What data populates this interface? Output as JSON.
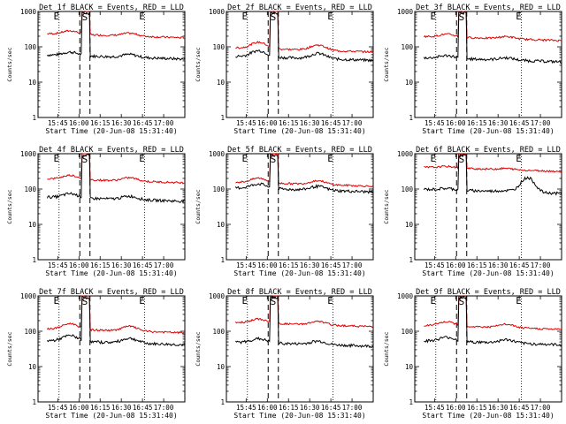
{
  "panels": [
    {
      "title": "Det 1f BLACK = Events, RED = LLD"
    },
    {
      "title": "Det 2f BLACK = Events, RED = LLD"
    },
    {
      "title": "Det 3f BLACK = Events, RED = LLD"
    },
    {
      "title": "Det 4f BLACK = Events, RED = LLD"
    },
    {
      "title": "Det 5f BLACK = Events, RED = LLD"
    },
    {
      "title": "Det 6f BLACK = Events, RED = LLD"
    },
    {
      "title": "Det 7f BLACK = Events, RED = LLD"
    },
    {
      "title": "Det 8f BLACK = Events, RED = LLD"
    },
    {
      "title": "Det 9f BLACK = Events, RED = LLD"
    }
  ],
  "colors": {
    "events": "#000000",
    "lld": "#e00000"
  },
  "chart_data": {
    "type": "line",
    "xlabel": "Start Time (20-Jun-08 15:31:40)",
    "ylabel": "Counts/sec",
    "y_scale": "log",
    "ylim": [
      1,
      1000
    ],
    "ytick_labels": [
      "1",
      "10",
      "100",
      "1000"
    ],
    "xtick_labels": [
      "15:45",
      "16:00",
      "16:15",
      "16:30",
      "16:45",
      "17:00"
    ],
    "event_markers": {
      "dotted": [
        "E",
        "E"
      ],
      "dashed": [
        "S"
      ]
    },
    "series": [
      {
        "name": "Events",
        "color": "#000000"
      },
      {
        "name": "LLD",
        "color": "#e00000"
      }
    ]
  }
}
